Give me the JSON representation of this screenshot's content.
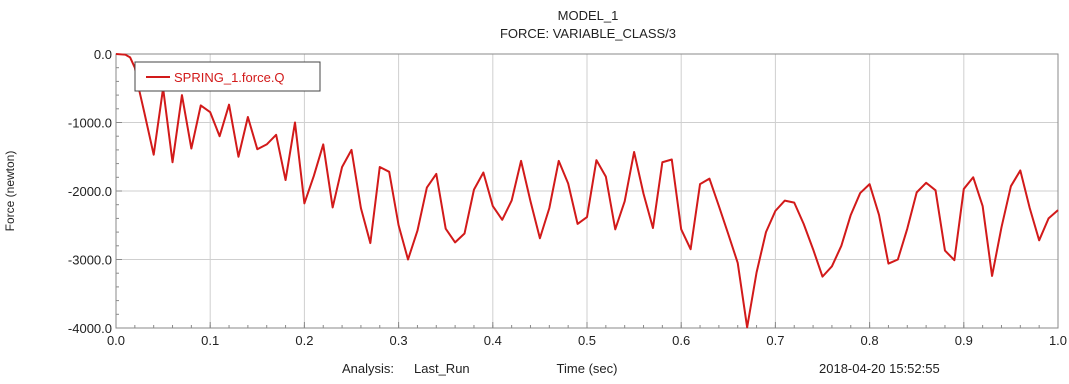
{
  "chart_data": {
    "type": "line",
    "title": "MODEL_1",
    "subtitle": "FORCE: VARIABLE_CLASS/3",
    "xlabel": "Time (sec)",
    "ylabel": "Force (newton)",
    "xlim": [
      0.0,
      1.0
    ],
    "ylim": [
      -4000.0,
      0.0
    ],
    "x_ticks": [
      0.0,
      0.1,
      0.2,
      0.3,
      0.4,
      0.5,
      0.6,
      0.7,
      0.8,
      0.9,
      1.0
    ],
    "x_tick_labels": [
      "0.0",
      "0.1",
      "0.2",
      "0.3",
      "0.4",
      "0.5",
      "0.6",
      "0.7",
      "0.8",
      "0.9",
      "1.0"
    ],
    "y_ticks": [
      0.0,
      -1000.0,
      -2000.0,
      -3000.0,
      -4000.0
    ],
    "y_tick_labels": [
      "0.0",
      "-1000.0",
      "-2000.0",
      "-3000.0",
      "-4000.0"
    ],
    "grid": true,
    "legend_position": "top-left",
    "footer": {
      "analysis_label": "Analysis:",
      "analysis_value": "Last_Run",
      "timestamp": "2018-04-20 15:52:55"
    },
    "colors": {
      "series": "#d21a1a",
      "grid": "#cfcfcf",
      "axis": "#8a8a8a"
    },
    "series": [
      {
        "name": "SPRING_1.force.Q",
        "x": [
          0.0,
          0.01,
          0.015,
          0.02,
          0.025,
          0.03,
          0.04,
          0.05,
          0.06,
          0.07,
          0.08,
          0.09,
          0.1,
          0.11,
          0.12,
          0.13,
          0.14,
          0.15,
          0.16,
          0.17,
          0.18,
          0.19,
          0.2,
          0.21,
          0.22,
          0.23,
          0.24,
          0.25,
          0.26,
          0.27,
          0.28,
          0.29,
          0.3,
          0.31,
          0.32,
          0.33,
          0.34,
          0.35,
          0.36,
          0.37,
          0.38,
          0.39,
          0.4,
          0.41,
          0.42,
          0.43,
          0.44,
          0.45,
          0.46,
          0.47,
          0.48,
          0.49,
          0.5,
          0.51,
          0.52,
          0.53,
          0.54,
          0.55,
          0.56,
          0.57,
          0.58,
          0.59,
          0.6,
          0.61,
          0.62,
          0.63,
          0.64,
          0.65,
          0.66,
          0.67,
          0.68,
          0.69,
          0.7,
          0.71,
          0.72,
          0.73,
          0.74,
          0.75,
          0.76,
          0.77,
          0.78,
          0.79,
          0.8,
          0.81,
          0.82,
          0.83,
          0.84,
          0.85,
          0.86,
          0.87,
          0.88,
          0.89,
          0.9,
          0.91,
          0.92,
          0.93,
          0.94,
          0.95,
          0.96,
          0.97,
          0.98,
          0.99,
          1.0
        ],
        "y": [
          0,
          -10,
          -50,
          -200,
          -550,
          -850,
          -1470,
          -500,
          -1580,
          -600,
          -1380,
          -750,
          -850,
          -1200,
          -740,
          -1500,
          -920,
          -1390,
          -1320,
          -1180,
          -1840,
          -1000,
          -2180,
          -1780,
          -1320,
          -2240,
          -1650,
          -1400,
          -2250,
          -2760,
          -1650,
          -1720,
          -2500,
          -3000,
          -2580,
          -1950,
          -1750,
          -2550,
          -2750,
          -2620,
          -1980,
          -1730,
          -2220,
          -2420,
          -2140,
          -1560,
          -2150,
          -2690,
          -2250,
          -1560,
          -1890,
          -2480,
          -2380,
          -1550,
          -1790,
          -2560,
          -2150,
          -1430,
          -2040,
          -2540,
          -1580,
          -1540,
          -2560,
          -2850,
          -1900,
          -1820,
          -2220,
          -2630,
          -3050,
          -3990,
          -3190,
          -2600,
          -2290,
          -2140,
          -2170,
          -2480,
          -2850,
          -3250,
          -3100,
          -2800,
          -2350,
          -2030,
          -1900,
          -2350,
          -3060,
          -3000,
          -2550,
          -2020,
          -1880,
          -1990,
          -2870,
          -3010,
          -1970,
          -1800,
          -2220,
          -3240,
          -2530,
          -1930,
          -1700,
          -2250,
          -2720,
          -2400,
          -2280
        ]
      }
    ]
  }
}
